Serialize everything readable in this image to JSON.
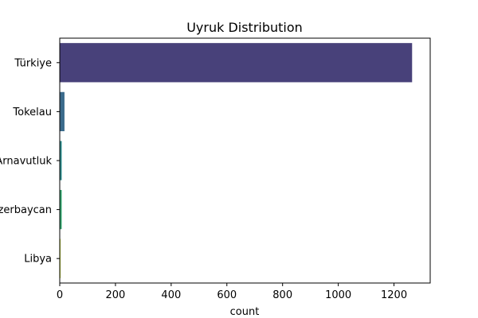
{
  "chart_data": {
    "type": "bar",
    "orientation": "horizontal",
    "title": "Uyruk Distribution",
    "xlabel": "count",
    "ylabel": "",
    "categories": [
      "Türkiye",
      "Tokelau",
      "Arnavutluk",
      "Azerbaycan",
      "Libya"
    ],
    "values": [
      1265,
      17,
      7,
      7,
      3
    ],
    "colors": [
      "#48417a",
      "#3b6b8c",
      "#2a8a8a",
      "#2fa46c",
      "#c8d83a"
    ],
    "xlim": [
      0,
      1330
    ],
    "xticks": [
      0,
      200,
      400,
      600,
      800,
      1000,
      1200
    ],
    "grid": false,
    "legend": "none"
  }
}
